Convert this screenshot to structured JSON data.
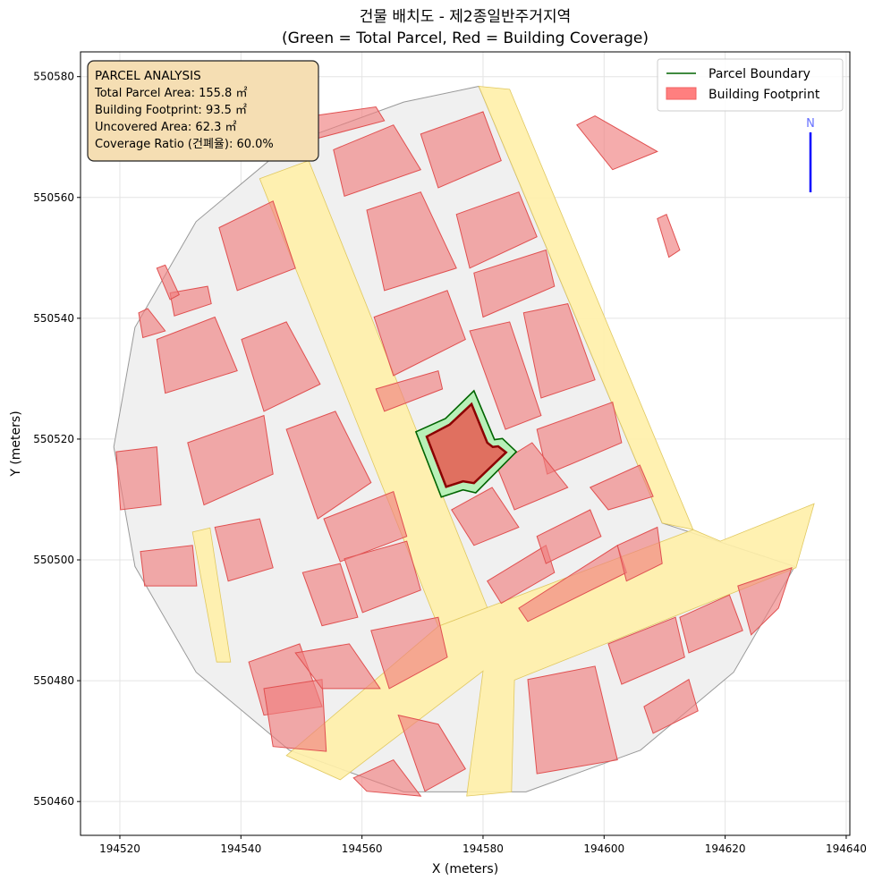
{
  "title_line1": "건물 배치도 - 제2종일반주거지역",
  "title_line2": "(Green = Total Parcel, Red = Building Coverage)",
  "info_box": {
    "heading": "PARCEL ANALYSIS",
    "lines": [
      "Total Parcel Area: 155.8 ㎡",
      "Building Footprint: 93.5 ㎡",
      "Uncovered Area: 62.3 ㎡",
      "Coverage Ratio (건폐율): 60.0%"
    ]
  },
  "legend": [
    {
      "label": "Parcel Boundary",
      "color": "#006400",
      "kind": "line"
    },
    {
      "label": "Building Footprint",
      "color": "#ff7f7f",
      "kind": "patch"
    }
  ],
  "north_label": "N",
  "chart_data": {
    "type": "map",
    "xlabel": "X (meters)",
    "ylabel": "Y (meters)",
    "xlim": [
      194513.5,
      194640.6
    ],
    "ylim": [
      550454.4,
      550584.1
    ],
    "xticks": [
      194520,
      194540,
      194560,
      194580,
      194600,
      194620,
      194640
    ],
    "yticks": [
      550460,
      550480,
      550500,
      550520,
      550540,
      550560,
      550580
    ],
    "grid": true,
    "legend_position": "top-right",
    "colors": {
      "site": "#f0f0f0",
      "road": "#fff0a8",
      "building": "#f08080",
      "parcel_fill": "#b8f0b8",
      "parcel_edge": "#006400",
      "target_fill": "#e07060",
      "target_edge": "#8b0000",
      "north_arrow": "#0000ff"
    },
    "site_boundary": [
      [
        194566.9,
        550575.8
      ],
      [
        194548.0,
        550568.9
      ],
      [
        194532.6,
        550556.0
      ],
      [
        194522.5,
        550538.5
      ],
      [
        194519.0,
        550518.7
      ],
      [
        194522.5,
        550498.9
      ],
      [
        194532.6,
        550481.4
      ],
      [
        194548.0,
        550468.5
      ],
      [
        194566.9,
        550461.6
      ],
      [
        194587.1,
        550461.6
      ],
      [
        194606.0,
        550468.5
      ],
      [
        194621.4,
        550481.4
      ],
      [
        194631.5,
        550498.9
      ],
      [
        194609.6,
        550506.1
      ],
      [
        194579.3,
        550578.4
      ]
    ],
    "roads": [
      [
        [
          194543.1,
          550563.1
        ],
        [
          194551.2,
          550566.1
        ],
        [
          194580.7,
          550492.1
        ],
        [
          194572.6,
          550489.0
        ]
      ],
      [
        [
          194547.5,
          550467.6
        ],
        [
          194572.6,
          550489.0
        ],
        [
          194580.7,
          550492.1
        ],
        [
          194614.7,
          550505.0
        ],
        [
          194619.2,
          550503.1
        ],
        [
          194634.7,
          550509.3
        ],
        [
          194631.7,
          550498.7
        ],
        [
          194585.2,
          550480.1
        ],
        [
          194584.7,
          550461.6
        ],
        [
          194577.3,
          550460.9
        ],
        [
          194580.0,
          550481.6
        ],
        [
          194556.4,
          550463.6
        ]
      ],
      [
        [
          194579.3,
          550578.4
        ],
        [
          194584.4,
          550577.9
        ],
        [
          194614.7,
          550505.0
        ],
        [
          194609.6,
          550506.1
        ]
      ],
      [
        [
          194532.0,
          550504.6
        ],
        [
          194534.9,
          550505.3
        ],
        [
          194538.3,
          550483.1
        ],
        [
          194536.0,
          550483.1
        ]
      ]
    ],
    "buildings": [
      [
        [
          194555.3,
          550567.9
        ],
        [
          194565.2,
          550572.0
        ],
        [
          194569.7,
          550564.6
        ],
        [
          194557.1,
          550560.2
        ]
      ],
      [
        [
          194560.8,
          550557.9
        ],
        [
          194569.7,
          550560.9
        ],
        [
          194575.6,
          550548.3
        ],
        [
          194563.7,
          550544.6
        ]
      ],
      [
        [
          194536.4,
          550555.0
        ],
        [
          194545.3,
          550559.4
        ],
        [
          194549.0,
          550548.3
        ],
        [
          194539.4,
          550544.6
        ]
      ],
      [
        [
          194526.1,
          550536.5
        ],
        [
          194535.7,
          550540.2
        ],
        [
          194539.4,
          550531.3
        ],
        [
          194527.5,
          550527.6
        ]
      ],
      [
        [
          194540.1,
          550536.5
        ],
        [
          194547.5,
          550539.4
        ],
        [
          194553.1,
          550529.1
        ],
        [
          194543.8,
          550524.6
        ]
      ],
      [
        [
          194531.2,
          550519.4
        ],
        [
          194543.8,
          550523.9
        ],
        [
          194545.3,
          550514.2
        ],
        [
          194533.9,
          550509.1
        ]
      ],
      [
        [
          194547.5,
          550521.6
        ],
        [
          194555.6,
          550524.6
        ],
        [
          194561.5,
          550512.8
        ],
        [
          194552.7,
          550506.8
        ]
      ],
      [
        [
          194519.4,
          550517.9
        ],
        [
          194526.1,
          550518.7
        ],
        [
          194526.8,
          550509.1
        ],
        [
          194520.1,
          550508.3
        ]
      ],
      [
        [
          194535.7,
          550505.4
        ],
        [
          194543.1,
          550506.8
        ],
        [
          194545.3,
          550498.7
        ],
        [
          194537.9,
          550496.5
        ]
      ],
      [
        [
          194523.4,
          550501.4
        ],
        [
          194532.0,
          550502.4
        ],
        [
          194532.7,
          550495.7
        ],
        [
          194524.1,
          550495.7
        ]
      ],
      [
        [
          194553.7,
          550506.8
        ],
        [
          194565.2,
          550511.3
        ],
        [
          194567.4,
          550503.9
        ],
        [
          194556.4,
          550499.7
        ]
      ],
      [
        [
          194557.1,
          550500.2
        ],
        [
          194567.4,
          550503.1
        ],
        [
          194569.7,
          550495.0
        ],
        [
          194560.1,
          550491.3
        ]
      ],
      [
        [
          194550.2,
          550497.9
        ],
        [
          194556.4,
          550499.4
        ],
        [
          194559.3,
          550490.5
        ],
        [
          194553.4,
          550489.1
        ]
      ],
      [
        [
          194562.0,
          550540.2
        ],
        [
          194574.1,
          550544.6
        ],
        [
          194577.1,
          550536.5
        ],
        [
          194565.2,
          550530.5
        ]
      ],
      [
        [
          194577.8,
          550537.9
        ],
        [
          194584.4,
          550539.4
        ],
        [
          194589.6,
          550523.9
        ],
        [
          194583.7,
          550521.6
        ]
      ],
      [
        [
          194586.7,
          550540.9
        ],
        [
          194594.0,
          550542.4
        ],
        [
          194598.5,
          550529.8
        ],
        [
          194589.6,
          550526.8
        ]
      ],
      [
        [
          194578.5,
          550547.5
        ],
        [
          194590.4,
          550551.3
        ],
        [
          194591.8,
          550545.3
        ],
        [
          194580.0,
          550540.2
        ]
      ],
      [
        [
          194575.6,
          550557.2
        ],
        [
          194585.9,
          550560.9
        ],
        [
          194588.9,
          550553.5
        ],
        [
          194577.8,
          550548.3
        ]
      ],
      [
        [
          194569.7,
          550570.5
        ],
        [
          194580.0,
          550574.2
        ],
        [
          194583.0,
          550566.1
        ],
        [
          194572.6,
          550561.6
        ]
      ],
      [
        [
          194588.9,
          550521.6
        ],
        [
          194601.4,
          550526.1
        ],
        [
          194602.9,
          550519.4
        ],
        [
          194590.6,
          550514.2
        ]
      ],
      [
        [
          194582.2,
          550515.7
        ],
        [
          194588.1,
          550519.4
        ],
        [
          194594.0,
          550512.0
        ],
        [
          194585.2,
          550508.3
        ]
      ],
      [
        [
          194574.8,
          550508.3
        ],
        [
          194581.5,
          550512.0
        ],
        [
          194585.9,
          550505.4
        ],
        [
          194578.5,
          550502.4
        ]
      ],
      [
        [
          194580.7,
          550496.5
        ],
        [
          194590.4,
          550502.4
        ],
        [
          194591.8,
          550497.9
        ],
        [
          194583.0,
          550492.8
        ]
      ],
      [
        [
          194588.9,
          550503.9
        ],
        [
          194597.7,
          550508.3
        ],
        [
          194599.5,
          550503.9
        ],
        [
          194590.4,
          550499.4
        ]
      ],
      [
        [
          194585.9,
          550492.0
        ],
        [
          194602.2,
          550502.4
        ],
        [
          194603.7,
          550497.9
        ],
        [
          194587.4,
          550489.8
        ]
      ],
      [
        [
          194597.7,
          550512.0
        ],
        [
          194605.9,
          550515.7
        ],
        [
          194608.1,
          550510.5
        ],
        [
          194600.7,
          550508.3
        ]
      ],
      [
        [
          194602.2,
          550502.4
        ],
        [
          194608.8,
          550505.4
        ],
        [
          194609.6,
          550499.4
        ],
        [
          194603.7,
          550496.5
        ]
      ],
      [
        [
          194600.7,
          550486.1
        ],
        [
          194611.8,
          550490.5
        ],
        [
          194613.3,
          550483.9
        ],
        [
          194602.9,
          550479.4
        ]
      ],
      [
        [
          194612.5,
          550490.5
        ],
        [
          194620.7,
          550494.2
        ],
        [
          194622.9,
          550488.3
        ],
        [
          194614.0,
          550484.6
        ]
      ],
      [
        [
          194622.1,
          550495.7
        ],
        [
          194631.0,
          550498.7
        ],
        [
          194628.8,
          550492.0
        ],
        [
          194624.3,
          550487.6
        ]
      ],
      [
        [
          194587.4,
          550480.2
        ],
        [
          194598.5,
          550482.4
        ],
        [
          194602.2,
          550466.9
        ],
        [
          194588.9,
          550464.6
        ]
      ],
      [
        [
          194606.6,
          550475.7
        ],
        [
          194614.0,
          550480.2
        ],
        [
          194615.5,
          550475.0
        ],
        [
          194608.1,
          550471.3
        ]
      ],
      [
        [
          194541.3,
          550483.1
        ],
        [
          194549.7,
          550486.1
        ],
        [
          194553.4,
          550475.7
        ],
        [
          194543.8,
          550474.3
        ]
      ],
      [
        [
          194543.8,
          550478.7
        ],
        [
          194553.4,
          550480.2
        ],
        [
          194554.1,
          550468.3
        ],
        [
          194545.3,
          550469.1
        ]
      ],
      [
        [
          194549.0,
          550484.6
        ],
        [
          194557.9,
          550486.1
        ],
        [
          194563.0,
          550478.7
        ],
        [
          194553.4,
          550478.7
        ]
      ],
      [
        [
          194561.5,
          550488.3
        ],
        [
          194572.6,
          550490.5
        ],
        [
          194574.1,
          550483.9
        ],
        [
          194564.5,
          550478.7
        ]
      ],
      [
        [
          194566.0,
          550474.3
        ],
        [
          194572.6,
          550472.8
        ],
        [
          194577.1,
          550465.4
        ],
        [
          194570.4,
          550461.7
        ]
      ],
      [
        [
          194558.6,
          550463.9
        ],
        [
          194565.2,
          550466.9
        ],
        [
          194569.7,
          550460.9
        ],
        [
          194560.8,
          550461.7
        ]
      ],
      [
        [
          194595.5,
          550572.0
        ],
        [
          194598.5,
          550573.5
        ],
        [
          194608.8,
          550567.6
        ],
        [
          194601.4,
          550564.6
        ]
      ],
      [
        [
          194608.8,
          550556.5
        ],
        [
          194610.3,
          550557.2
        ],
        [
          194612.5,
          550551.3
        ],
        [
          194610.7,
          550550.1
        ]
      ],
      [
        [
          194523.1,
          550540.9
        ],
        [
          194524.6,
          550541.6
        ],
        [
          194527.5,
          550537.9
        ],
        [
          194523.8,
          550536.8
        ]
      ],
      [
        [
          194528.3,
          550544.2
        ],
        [
          194534.5,
          550545.3
        ],
        [
          194535.1,
          550542.4
        ],
        [
          194529.0,
          550540.4
        ]
      ],
      [
        [
          194526.1,
          550548.3
        ],
        [
          194527.5,
          550548.8
        ],
        [
          194529.8,
          550543.9
        ],
        [
          194528.3,
          550543.1
        ]
      ],
      [
        [
          194551.9,
          550573.5
        ],
        [
          194562.3,
          550575.0
        ],
        [
          194563.7,
          550572.7
        ],
        [
          194552.7,
          550569.8
        ]
      ],
      [
        [
          194562.3,
          550528.3
        ],
        [
          194572.6,
          550531.3
        ],
        [
          194573.3,
          550528.3
        ],
        [
          194563.7,
          550524.6
        ]
      ]
    ],
    "target_parcel": [
      [
        194568.9,
        550521.2
      ],
      [
        194573.8,
        550523.4
      ],
      [
        194578.5,
        550528.0
      ],
      [
        194581.9,
        550519.9
      ],
      [
        194583.2,
        550520.1
      ],
      [
        194585.5,
        550517.9
      ],
      [
        194578.8,
        550511.1
      ],
      [
        194576.7,
        550511.6
      ],
      [
        194573.1,
        550510.4
      ]
    ],
    "target_building": [
      [
        194570.7,
        550520.4
      ],
      [
        194574.5,
        550522.4
      ],
      [
        194578.1,
        550525.8
      ],
      [
        194580.7,
        550519.4
      ],
      [
        194581.6,
        550518.7
      ],
      [
        194582.5,
        550518.8
      ],
      [
        194583.8,
        550517.8
      ],
      [
        194578.5,
        550512.7
      ],
      [
        194576.7,
        550513.0
      ],
      [
        194573.9,
        550512.1
      ]
    ]
  }
}
